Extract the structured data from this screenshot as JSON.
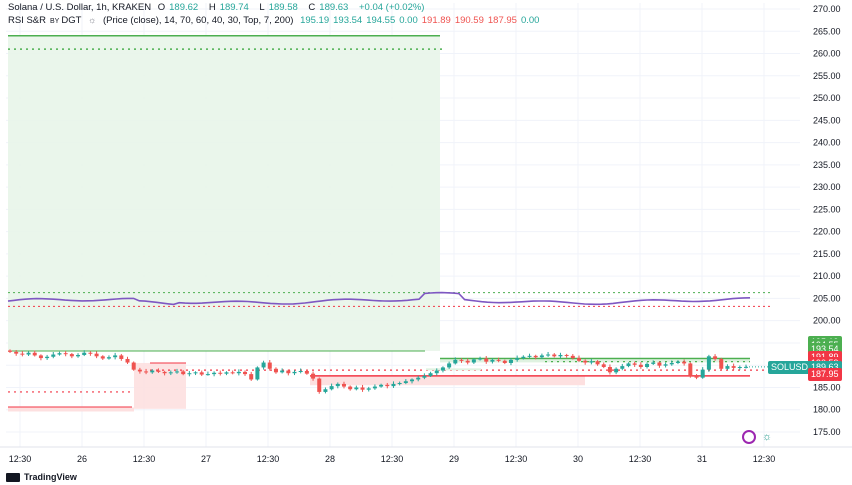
{
  "header": {
    "line1": {
      "symbol": "Solana / U.S. Dollar, 1h, KRAKEN",
      "o_label": "O",
      "o": "189.62",
      "h_label": "H",
      "h": "189.74",
      "l_label": "L",
      "l": "189.58",
      "c_label": "C",
      "c": "189.63",
      "change": "+0.04 (+0.02%)"
    },
    "line2": {
      "indicator": "RSI S&R",
      "by": "BY",
      "author": "DGT",
      "settings": "(Price (close), 14, 70, 60, 40, 30, Top, 7, 200)",
      "values": [
        "195.19",
        "193.54",
        "194.55",
        "0.00",
        "191.89",
        "190.59",
        "187.95",
        "0.00"
      ]
    }
  },
  "colors": {
    "up": "#26a69a",
    "down": "#ef5350",
    "rsi": "#7e57c2",
    "green_level": "#4caf50",
    "red_level": "#f23645",
    "grid": "#f0f3fa"
  },
  "price_tags": [
    {
      "value": "195.19",
      "color": "#4caf50"
    },
    {
      "value": "194.55",
      "color": "#4caf50"
    },
    {
      "value": "193.54",
      "color": "#4caf50"
    },
    {
      "value": "191.89",
      "color": "#f23645"
    },
    {
      "value": "190.59",
      "color": "#f23645"
    },
    {
      "value": "189.63",
      "color": "#26a69a",
      "name": "SOLUSD"
    },
    {
      "value": "187.95",
      "color": "#f23645"
    }
  ],
  "branding": "TradingView",
  "chart_data": {
    "type": "candlestick",
    "y_axis": {
      "range": [
        171,
        273
      ],
      "ticks": [
        175.0,
        180.0,
        185.0,
        190.0,
        195.0,
        200.0,
        205.0,
        210.0,
        215.0,
        220.0,
        225.0,
        230.0,
        235.0,
        240.0,
        245.0,
        250.0,
        255.0,
        260.0,
        265.0,
        270.0
      ]
    },
    "x_axis": {
      "ticks": [
        "12:30",
        "26",
        "12:30",
        "27",
        "12:30",
        "28",
        "12:30",
        "29",
        "12:30",
        "30",
        "12:30",
        "31",
        "12:30"
      ]
    },
    "candles_close": [
      193.0,
      192.6,
      192.4,
      192.8,
      192.2,
      191.6,
      191.9,
      192.4,
      192.7,
      192.5,
      192.0,
      192.3,
      192.8,
      192.6,
      192.0,
      191.5,
      191.8,
      192.2,
      191.4,
      190.6,
      189.0,
      188.6,
      188.4,
      188.8,
      188.5,
      188.2,
      188.4,
      188.6,
      188.0,
      188.2,
      188.4,
      187.9,
      188.0,
      188.3,
      188.1,
      188.4,
      188.2,
      188.5,
      188.0,
      186.8,
      189.5,
      190.6,
      189.2,
      188.4,
      188.8,
      188.2,
      188.5,
      188.7,
      188.1,
      187.0,
      184.0,
      184.6,
      185.3,
      185.8,
      185.2,
      184.6,
      185.0,
      184.5,
      184.8,
      185.2,
      185.6,
      185.3,
      185.8,
      186.0,
      186.4,
      186.8,
      187.2,
      187.6,
      188.2,
      188.8,
      189.5,
      190.4,
      191.2,
      191.0,
      190.6,
      191.3,
      191.5,
      190.8,
      191.2,
      191.0,
      190.5,
      191.2,
      191.6,
      191.9,
      192.1,
      191.8,
      192.2,
      192.4,
      192.0,
      192.3,
      192.1,
      191.6,
      191.0,
      190.6,
      190.9,
      190.2,
      189.6,
      188.4,
      189.2,
      189.8,
      190.4,
      190.1,
      189.6,
      190.3,
      190.6,
      189.9,
      190.2,
      190.5,
      190.8,
      190.4,
      187.6,
      187.2,
      189.0,
      192.0,
      191.4,
      189.2,
      189.8,
      189.4,
      189.6,
      189.63
    ],
    "rsi_levels": {
      "upper": 195.19,
      "mid_upper": 194.55
    },
    "support_resistance": [
      {
        "type": "resistance",
        "value": 264.0
      },
      {
        "type": "support",
        "value": 180.0
      },
      {
        "type": "resistance",
        "value": 193.2
      },
      {
        "type": "support",
        "value": 187.95
      }
    ]
  }
}
